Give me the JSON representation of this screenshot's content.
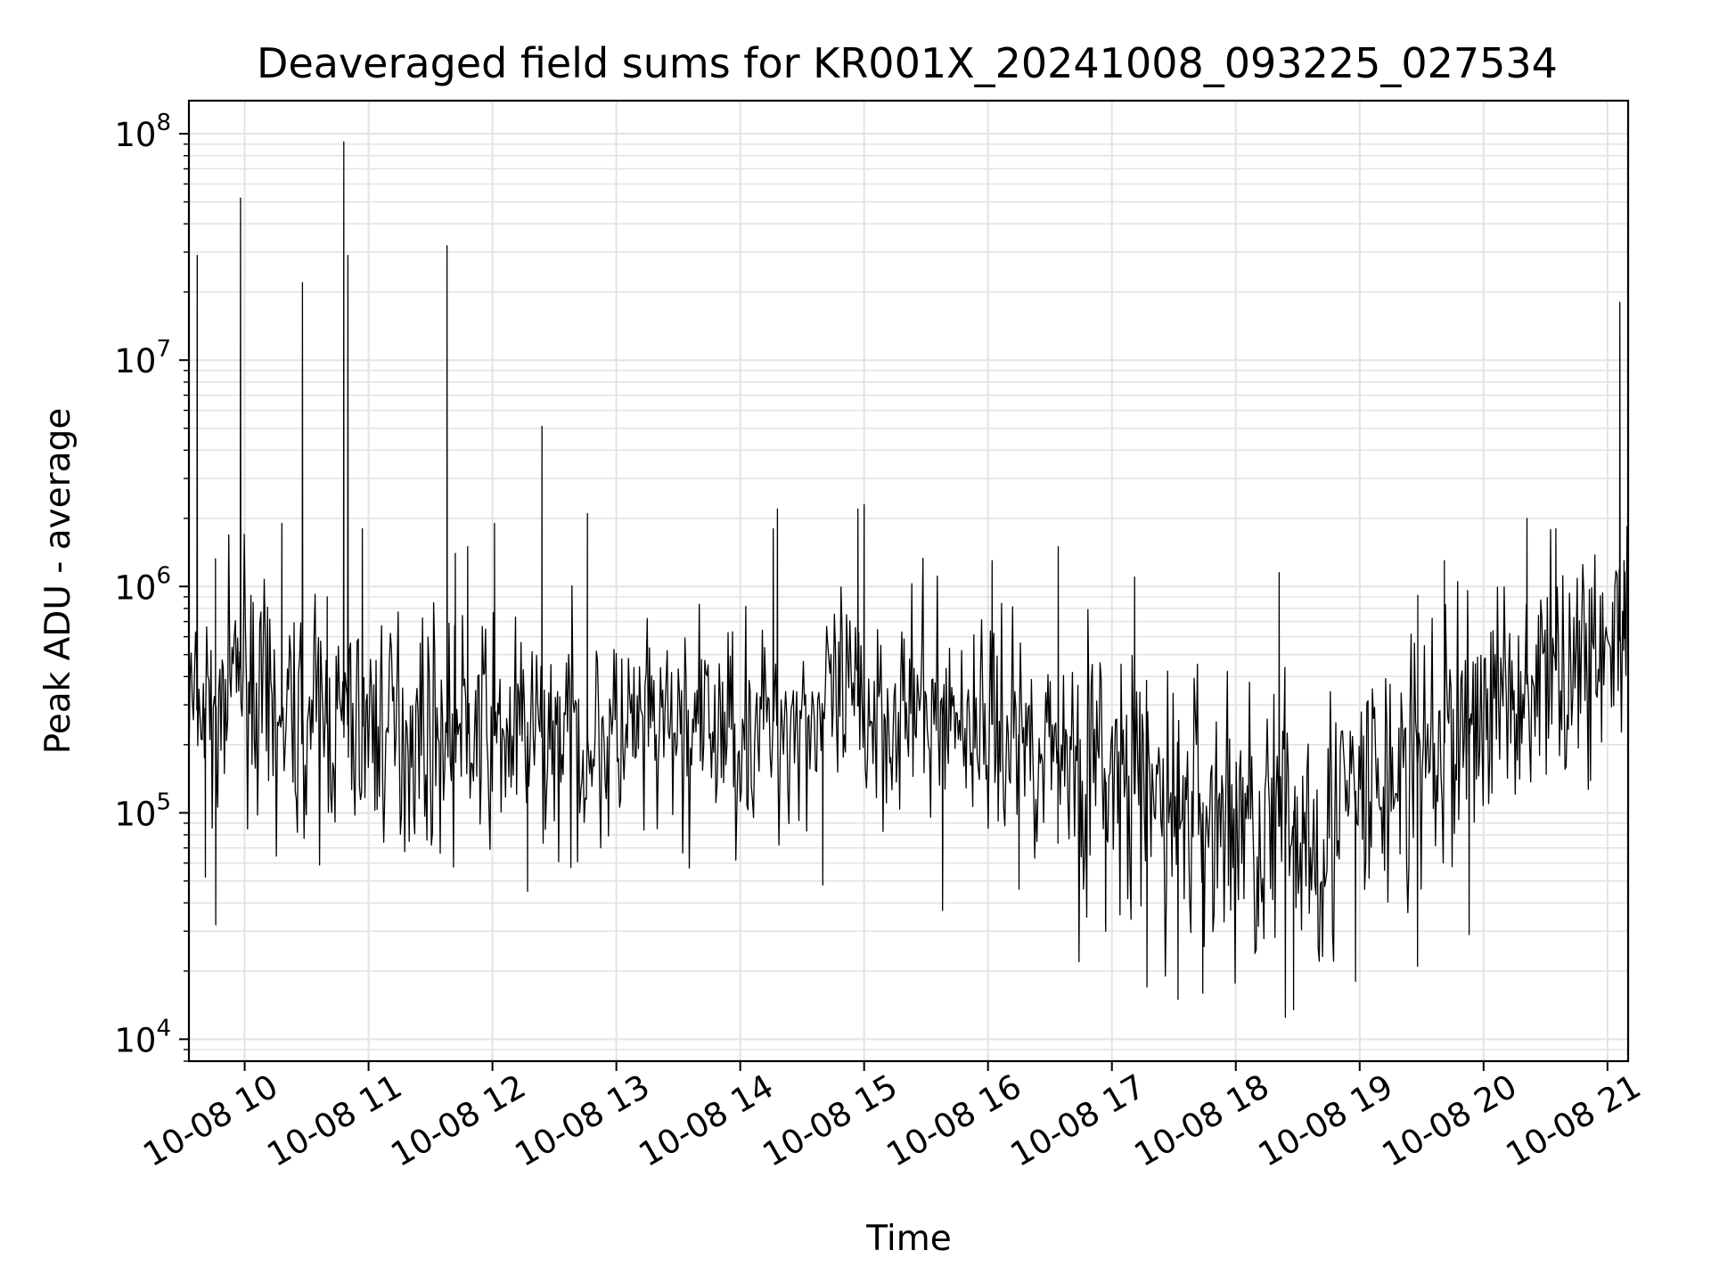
{
  "chart_data": {
    "type": "line",
    "title": "Deaveraged field sums for KR001X_20241008_093225_027534",
    "xlabel": "Time",
    "ylabel": "Peak ADU - average",
    "x_range": [
      "2024-10-08 09:33",
      "2024-10-08 21:10"
    ],
    "ylim": [
      8000,
      140000000
    ],
    "y_scale": "log",
    "grid": true,
    "line_color": "#000000",
    "x_ticks": [
      {
        "value": "2024-10-08 10:00",
        "label": "10-08 10"
      },
      {
        "value": "2024-10-08 11:00",
        "label": "10-08 11"
      },
      {
        "value": "2024-10-08 12:00",
        "label": "10-08 12"
      },
      {
        "value": "2024-10-08 13:00",
        "label": "10-08 13"
      },
      {
        "value": "2024-10-08 14:00",
        "label": "10-08 14"
      },
      {
        "value": "2024-10-08 15:00",
        "label": "10-08 15"
      },
      {
        "value": "2024-10-08 16:00",
        "label": "10-08 16"
      },
      {
        "value": "2024-10-08 17:00",
        "label": "10-08 17"
      },
      {
        "value": "2024-10-08 18:00",
        "label": "10-08 18"
      },
      {
        "value": "2024-10-08 19:00",
        "label": "10-08 19"
      },
      {
        "value": "2024-10-08 20:00",
        "label": "10-08 20"
      },
      {
        "value": "2024-10-08 21:00",
        "label": "10-08 21"
      }
    ],
    "y_ticks": [
      {
        "value": 10000,
        "base": "10",
        "exp": "4"
      },
      {
        "value": 100000,
        "base": "10",
        "exp": "5"
      },
      {
        "value": 1000000,
        "base": "10",
        "exp": "6"
      },
      {
        "value": 10000000,
        "base": "10",
        "exp": "7"
      },
      {
        "value": 100000000,
        "base": "10",
        "exp": "8"
      }
    ],
    "series": [
      {
        "baseline": [
          [
            "2024-10-08 09:33",
            280000
          ],
          [
            "2024-10-08 09:50",
            300000
          ],
          [
            "2024-10-08 10:00",
            480000
          ],
          [
            "2024-10-08 10:10",
            260000
          ],
          [
            "2024-10-08 11:00",
            240000
          ],
          [
            "2024-10-08 12:00",
            220000
          ],
          [
            "2024-10-08 13:00",
            210000
          ],
          [
            "2024-10-08 14:00",
            240000
          ],
          [
            "2024-10-08 15:00",
            300000
          ],
          [
            "2024-10-08 16:00",
            250000
          ],
          [
            "2024-10-08 16:40",
            180000
          ],
          [
            "2024-10-08 17:00",
            130000
          ],
          [
            "2024-10-08 18:00",
            90000
          ],
          [
            "2024-10-08 18:40",
            85000
          ],
          [
            "2024-10-08 19:00",
            110000
          ],
          [
            "2024-10-08 19:40",
            200000
          ],
          [
            "2024-10-08 20:00",
            300000
          ],
          [
            "2024-10-08 20:40",
            450000
          ],
          [
            "2024-10-08 21:10",
            600000
          ]
        ],
        "spikes": [
          [
            "2024-10-08 09:37",
            29000000
          ],
          [
            "2024-10-08 09:58",
            52000000
          ],
          [
            "2024-10-08 10:18",
            1900000
          ],
          [
            "2024-10-08 10:28",
            22000000
          ],
          [
            "2024-10-08 10:40",
            900000
          ],
          [
            "2024-10-08 10:48",
            92000000
          ],
          [
            "2024-10-08 10:50",
            29000000
          ],
          [
            "2024-10-08 10:57",
            1800000
          ],
          [
            "2024-10-08 11:38",
            32000000
          ],
          [
            "2024-10-08 11:42",
            1400000
          ],
          [
            "2024-10-08 11:48",
            1500000
          ],
          [
            "2024-10-08 12:01",
            1900000
          ],
          [
            "2024-10-08 12:24",
            5100000
          ],
          [
            "2024-10-08 12:46",
            2100000
          ],
          [
            "2024-10-08 14:18",
            2200000
          ],
          [
            "2024-10-08 14:16",
            1800000
          ],
          [
            "2024-10-08 14:57",
            2200000
          ],
          [
            "2024-10-08 15:00",
            2300000
          ],
          [
            "2024-10-08 16:02",
            1300000
          ],
          [
            "2024-10-08 16:34",
            1500000
          ],
          [
            "2024-10-08 17:11",
            1100000
          ],
          [
            "2024-10-08 18:21",
            1150000
          ],
          [
            "2024-10-08 19:41",
            1300000
          ],
          [
            "2024-10-08 20:21",
            2000000
          ],
          [
            "2024-10-08 20:35",
            1800000
          ],
          [
            "2024-10-08 21:06",
            18000000
          ],
          [
            "2024-10-08 21:08",
            1300000
          ]
        ],
        "dips": [
          [
            "2024-10-08 09:41",
            52000
          ],
          [
            "2024-10-08 09:46",
            32000
          ],
          [
            "2024-10-08 12:17",
            45000
          ],
          [
            "2024-10-08 14:40",
            48000
          ],
          [
            "2024-10-08 15:38",
            37000
          ],
          [
            "2024-10-08 16:15",
            46000
          ],
          [
            "2024-10-08 16:57",
            30000
          ],
          [
            "2024-10-08 17:17",
            17000
          ],
          [
            "2024-10-08 17:32",
            15000
          ],
          [
            "2024-10-08 17:44",
            16000
          ],
          [
            "2024-10-08 18:24",
            12500
          ],
          [
            "2024-10-08 18:28",
            13500
          ],
          [
            "2024-10-08 18:58",
            18000
          ],
          [
            "2024-10-08 19:28",
            21000
          ],
          [
            "2024-10-08 19:53",
            29000
          ]
        ]
      }
    ]
  }
}
